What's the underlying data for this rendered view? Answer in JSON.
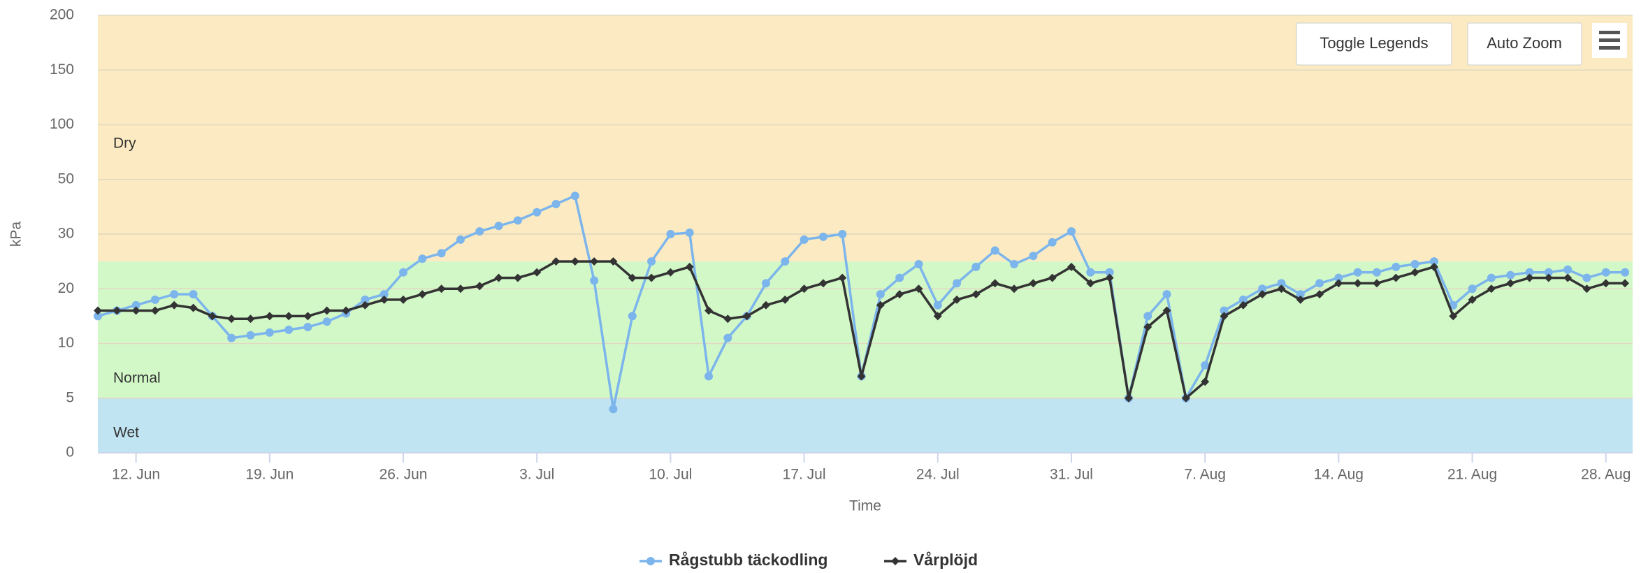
{
  "chart_data": {
    "type": "line",
    "xlabel": "Time",
    "ylabel": "kPa",
    "buttons": [
      "Toggle Legends",
      "Auto Zoom"
    ],
    "x": [
      "10 Jun",
      "11 Jun",
      "12 Jun",
      "13 Jun",
      "14 Jun",
      "15 Jun",
      "16 Jun",
      "17 Jun",
      "18 Jun",
      "19 Jun",
      "20 Jun",
      "21 Jun",
      "22 Jun",
      "23 Jun",
      "24 Jun",
      "25 Jun",
      "26 Jun",
      "27 Jun",
      "28 Jun",
      "29 Jun",
      "30 Jun",
      "1 Jul",
      "2 Jul",
      "3 Jul",
      "4 Jul",
      "5 Jul",
      "6 Jul",
      "7 Jul",
      "8 Jul",
      "9 Jul",
      "10 Jul",
      "11 Jul",
      "12 Jul",
      "13 Jul",
      "14 Jul",
      "15 Jul",
      "16 Jul",
      "17 Jul",
      "18 Jul",
      "19 Jul",
      "20 Jul",
      "21 Jul",
      "22 Jul",
      "23 Jul",
      "24 Jul",
      "25 Jul",
      "26 Jul",
      "27 Jul",
      "28 Jul",
      "29 Jul",
      "30 Jul",
      "31 Jul",
      "1 Aug",
      "2 Aug",
      "3 Aug",
      "4 Aug",
      "5 Aug",
      "6 Aug",
      "7 Aug",
      "8 Aug",
      "9 Aug",
      "10 Aug",
      "11 Aug",
      "12 Aug",
      "13 Aug",
      "14 Aug",
      "15 Aug",
      "16 Aug",
      "17 Aug",
      "18 Aug",
      "19 Aug",
      "20 Aug",
      "21 Aug",
      "22 Aug",
      "23 Aug",
      "24 Aug",
      "25 Aug",
      "26 Aug",
      "27 Aug",
      "28 Aug",
      "29 Aug"
    ],
    "xticks": [
      {
        "value": "12 Jun",
        "label": "12. Jun"
      },
      {
        "value": "19 Jun",
        "label": "19. Jun"
      },
      {
        "value": "26 Jun",
        "label": "26. Jun"
      },
      {
        "value": "3 Jul",
        "label": "3. Jul"
      },
      {
        "value": "10 Jul",
        "label": "10. Jul"
      },
      {
        "value": "17 Jul",
        "label": "17. Jul"
      },
      {
        "value": "24 Jul",
        "label": "24. Jul"
      },
      {
        "value": "31 Jul",
        "label": "31. Jul"
      },
      {
        "value": "7 Aug",
        "label": "7. Aug"
      },
      {
        "value": "14 Aug",
        "label": "14. Aug"
      },
      {
        "value": "21 Aug",
        "label": "21. Aug"
      },
      {
        "value": "28 Aug",
        "label": "28. Aug"
      }
    ],
    "ylim": [
      0,
      200
    ],
    "yticks": [
      0,
      5,
      10,
      20,
      30,
      50,
      100,
      150,
      200
    ],
    "grid": true,
    "bands": [
      {
        "label": "Wet",
        "range": [
          0,
          5
        ],
        "color": "#c0e4f2"
      },
      {
        "label": "Normal",
        "range": [
          5,
          25
        ],
        "color": "#d2f8c8"
      },
      {
        "label": "Dry",
        "range": [
          25,
          200
        ],
        "color": "#fcebc2"
      }
    ],
    "legend": "bottom",
    "series": [
      {
        "name": "Rågstubb täckodling",
        "color": "#7cb5ec",
        "values": [
          15,
          16,
          17,
          18,
          19,
          19,
          15,
          11,
          11.5,
          12,
          12.5,
          13,
          14,
          15.5,
          18,
          19,
          23,
          25.5,
          26.5,
          29,
          31,
          33,
          35,
          38,
          41,
          44,
          21.5,
          4,
          15,
          25,
          30,
          30.5,
          7,
          11,
          15,
          21,
          25,
          29,
          29.5,
          30,
          7,
          19,
          22,
          24.5,
          17,
          21,
          24,
          27,
          24.5,
          26,
          28.5,
          31,
          23,
          23,
          5,
          15,
          19,
          5,
          8,
          16,
          18,
          20,
          21,
          19,
          21,
          22,
          23,
          23,
          24,
          24.5,
          25,
          17,
          20,
          22,
          22.5,
          23,
          23,
          23.5,
          22,
          23,
          23
        ]
      },
      {
        "name": "Vårplöjd",
        "color": "#333333",
        "values": [
          16,
          16,
          16,
          16,
          17,
          16.5,
          15,
          14.5,
          14.5,
          15,
          15,
          15,
          16,
          16,
          17,
          18,
          18,
          19,
          20,
          20,
          20.5,
          22,
          22,
          23,
          25,
          25,
          25,
          25,
          22,
          22,
          23,
          24,
          16,
          14.5,
          15,
          17,
          18,
          20,
          21,
          22,
          7,
          17,
          19,
          20,
          15,
          18,
          19,
          21,
          20,
          21,
          22,
          24,
          21,
          22,
          5,
          13,
          16,
          5,
          6.5,
          15,
          17,
          19,
          20,
          18,
          19,
          21,
          21,
          21,
          22,
          23,
          24,
          15,
          18,
          20,
          21,
          22,
          22,
          22,
          20,
          21,
          21
        ]
      }
    ]
  }
}
